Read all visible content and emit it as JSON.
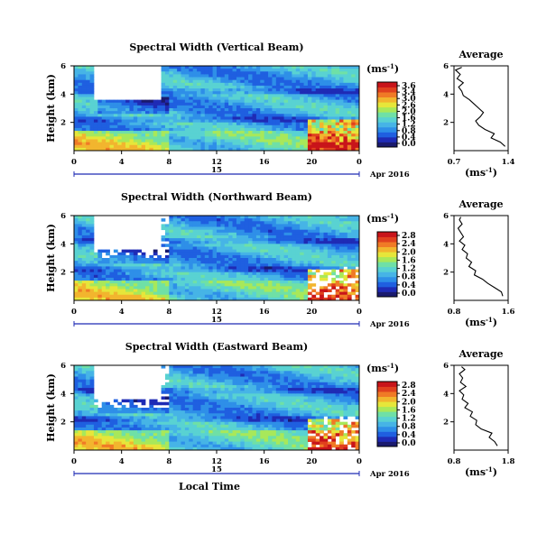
{
  "colors": {
    "colormap": [
      "#1a1a6e",
      "#1f2bb5",
      "#1f5fe0",
      "#2e8fe8",
      "#46b4e6",
      "#59d2d2",
      "#6fe0a6",
      "#a8e85a",
      "#e6e63a",
      "#f2b52e",
      "#f07a26",
      "#e0401e",
      "#c8141a"
    ],
    "blank": "#ffffff",
    "axis": "#000000",
    "date_axis": "#1f2bb5"
  },
  "chart_data": [
    {
      "type": "heatmap",
      "title": "Spectral Width (Vertical Beam)",
      "ylabel": "Height (km)",
      "yticks": [
        "6",
        "4",
        "2"
      ],
      "ylim": [
        0,
        6
      ],
      "xticks": [
        "0",
        "4",
        "8",
        "12",
        "16",
        "20",
        "0"
      ],
      "xlim": [
        0,
        24
      ],
      "date_day": "15",
      "date_label": "Apr 2016",
      "xlabel": "",
      "colorbar": {
        "unit": "(ms",
        "unit_sup": "-1",
        "unit_close": ")",
        "ticks": [
          "3.6",
          "3.4",
          "3.0",
          "2.6",
          "2.0",
          "1.6",
          "1.2",
          "0.8",
          "0.4",
          "0.0"
        ]
      },
      "average": {
        "title": "Average",
        "xlabel": "(ms",
        "xlabel_sup": "-1",
        "xlabel_close": ")",
        "xticks": [
          "0.7",
          "1.4"
        ],
        "xlim": [
          0.7,
          1.4
        ],
        "yticks": [
          "6",
          "4",
          "2"
        ],
        "ylim": [
          0,
          6
        ],
        "profile_height": [
          0.3,
          0.6,
          0.9,
          1.2,
          1.5,
          1.8,
          2.1,
          2.4,
          2.7,
          3.0,
          3.3,
          3.6,
          3.9,
          4.2,
          4.5,
          4.8,
          5.1,
          5.4,
          5.7,
          5.9
        ],
        "profile_value": [
          1.36,
          1.3,
          1.18,
          1.22,
          1.1,
          1.02,
          0.98,
          1.04,
          1.08,
          1.02,
          0.96,
          0.9,
          0.82,
          0.8,
          0.76,
          0.82,
          0.74,
          0.78,
          0.72,
          0.8
        ]
      }
    },
    {
      "type": "heatmap",
      "title": "Spectral Width (Northward Beam)",
      "ylabel": "Height (km)",
      "yticks": [
        "6",
        "4",
        "2"
      ],
      "ylim": [
        0,
        6
      ],
      "xticks": [
        "0",
        "4",
        "8",
        "12",
        "16",
        "20",
        "0"
      ],
      "xlim": [
        0,
        24
      ],
      "date_day": "15",
      "date_label": "Apr 2016",
      "xlabel": "",
      "colorbar": {
        "unit": "(ms",
        "unit_sup": "-1",
        "unit_close": ")",
        "ticks": [
          "2.8",
          "2.4",
          "2.0",
          "1.6",
          "1.2",
          "0.8",
          "0.4",
          "0.0"
        ]
      },
      "average": {
        "title": "Average",
        "xlabel": "(ms",
        "xlabel_sup": "-1",
        "xlabel_close": ")",
        "xticks": [
          "0.8",
          "1.6"
        ],
        "xlim": [
          0.8,
          1.6
        ],
        "yticks": [
          "6",
          "4",
          "2"
        ],
        "ylim": [
          0,
          6
        ],
        "profile_height": [
          0.3,
          0.6,
          0.9,
          1.2,
          1.5,
          1.8,
          2.1,
          2.4,
          2.7,
          3.0,
          3.3,
          3.6,
          3.9,
          4.2,
          4.5,
          4.8,
          5.1,
          5.4,
          5.7,
          5.9
        ],
        "profile_value": [
          1.52,
          1.5,
          1.4,
          1.3,
          1.22,
          1.1,
          1.12,
          1.02,
          1.06,
          0.98,
          1.0,
          0.92,
          0.96,
          0.88,
          0.94,
          0.9,
          0.86,
          0.92,
          0.88,
          0.9
        ]
      }
    },
    {
      "type": "heatmap",
      "title": "Spectral Width (Eastward Beam)",
      "ylabel": "Height (km)",
      "yticks": [
        "6",
        "4",
        "2"
      ],
      "ylim": [
        0,
        6
      ],
      "xticks": [
        "0",
        "4",
        "8",
        "12",
        "16",
        "20",
        "0"
      ],
      "xlim": [
        0,
        24
      ],
      "date_day": "15",
      "date_label": "Apr 2016",
      "xlabel": "Local Time",
      "colorbar": {
        "unit": "(ms",
        "unit_sup": "-1",
        "unit_close": ")",
        "ticks": [
          "2.8",
          "2.4",
          "2.0",
          "1.6",
          "1.2",
          "0.8",
          "0.4",
          "0.0"
        ]
      },
      "average": {
        "title": "Average",
        "xlabel": "(ms",
        "xlabel_sup": "-1",
        "xlabel_close": ")",
        "xticks": [
          "0.8",
          "1.8"
        ],
        "xlim": [
          0.8,
          1.8
        ],
        "yticks": [
          "6",
          "4",
          "2"
        ],
        "ylim": [
          0,
          6
        ],
        "profile_height": [
          0.3,
          0.6,
          0.9,
          1.2,
          1.5,
          1.8,
          2.1,
          2.4,
          2.7,
          3.0,
          3.3,
          3.6,
          3.9,
          4.2,
          4.5,
          4.8,
          5.1,
          5.4,
          5.7,
          5.9
        ],
        "profile_value": [
          1.6,
          1.55,
          1.45,
          1.5,
          1.3,
          1.2,
          1.22,
          1.1,
          1.14,
          1.0,
          1.06,
          0.95,
          0.98,
          0.9,
          1.02,
          0.92,
          0.96,
          0.9,
          1.0,
          0.94
        ]
      }
    }
  ]
}
